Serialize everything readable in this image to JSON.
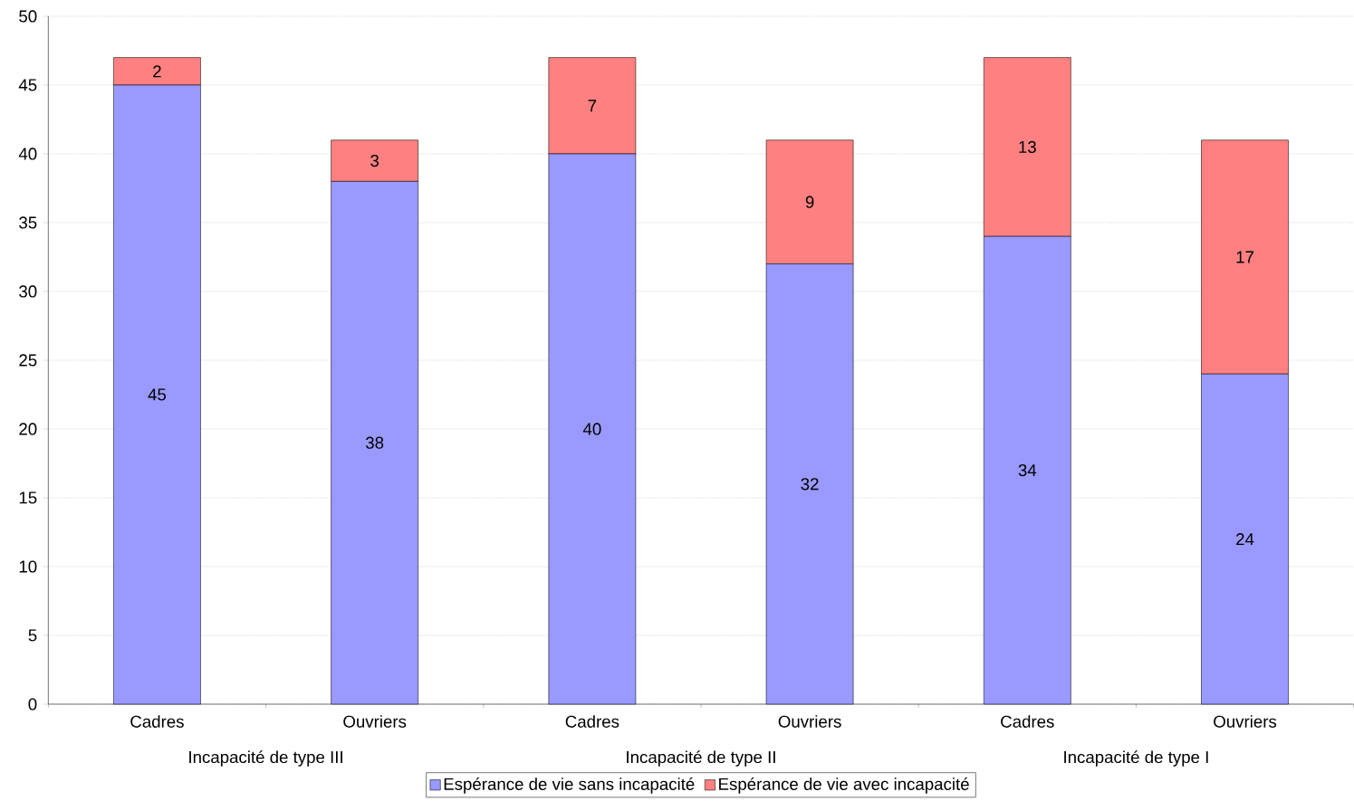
{
  "chart_data": {
    "type": "bar",
    "stacked": true,
    "categories": [
      "Cadres",
      "Ouvriers",
      "Cadres",
      "Ouvriers",
      "Cadres",
      "Ouvriers"
    ],
    "series": [
      {
        "name": "Espérance de vie sans incapacité",
        "color": "#9999ff",
        "values": [
          45,
          38,
          40,
          32,
          34,
          24
        ]
      },
      {
        "name": "Espérance de vie avec incapacité",
        "color": "#ff8080",
        "values": [
          2,
          3,
          7,
          9,
          13,
          17
        ]
      }
    ],
    "annotations": [
      "Incapacité de type III",
      "Incapacité de type II",
      "Incapacité de type I"
    ],
    "ylim": [
      0,
      50
    ],
    "yticks": [
      0,
      5,
      10,
      15,
      20,
      25,
      30,
      35,
      40,
      45,
      50
    ],
    "grid": "y",
    "legend": "bottom",
    "data_labels": true
  }
}
